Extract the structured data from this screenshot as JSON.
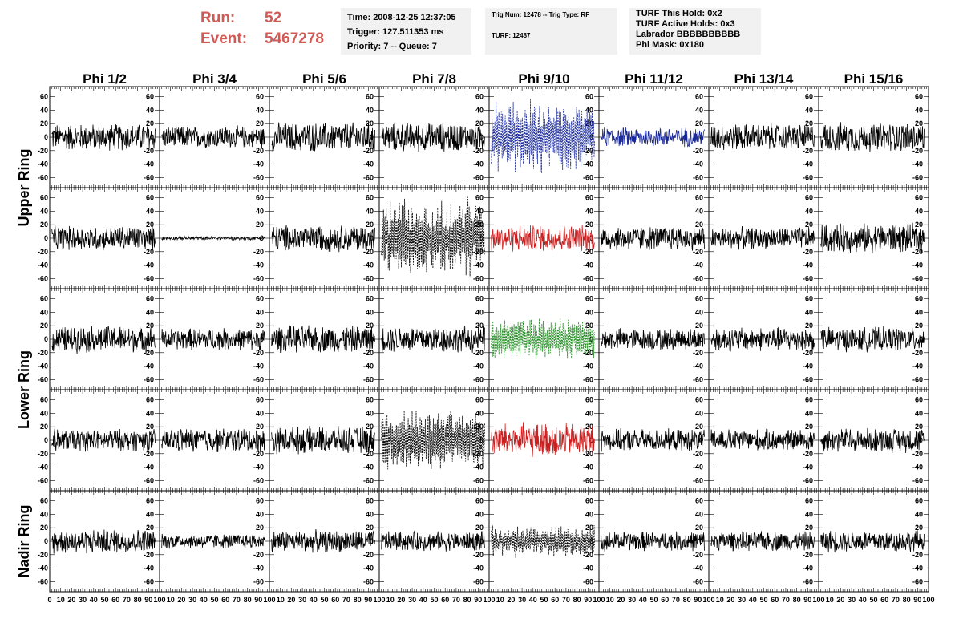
{
  "header": {
    "run_label": "Run:",
    "run_value": "52",
    "event_label": "Event:",
    "event_value": "5467278",
    "time": "Time: 2008-12-25 12:37:05",
    "trigger": "Trigger: 127.511353 ms",
    "priority": "Priority: 7 -- Queue: 7",
    "trig_num": "Trig Num: 12478 -- Trig Type: RF",
    "turf": "TURF: 12487",
    "turf_hold": "TURF This Hold: 0x2",
    "turf_active": "TURF Active Holds: 0x3",
    "labrador": "Labrador BBBBBBBBBB",
    "phi_mask": "Phi Mask: 0x180"
  },
  "colors": {
    "title_red": "#d05a56",
    "trace_black": "#000000",
    "trace_blue": "#1a2a9a",
    "trace_red": "#cc2020",
    "trace_green": "#1e8a1e",
    "info_bg": "#f1f1f1"
  },
  "chart_data": {
    "type": "line",
    "title": "",
    "columns": [
      "Phi 1/2",
      "Phi 3/4",
      "Phi 5/6",
      "Phi 7/8",
      "Phi 9/10",
      "Phi 11/12",
      "Phi 13/14",
      "Phi 15/16"
    ],
    "ring_labels": [
      {
        "text": "Upper Ring",
        "rows": [
          0,
          1
        ]
      },
      {
        "text": "Lower Ring",
        "rows": [
          2,
          3
        ]
      },
      {
        "text": "Nadir Ring",
        "rows": [
          4
        ]
      }
    ],
    "xlim": [
      0,
      100
    ],
    "ylim": [
      -75,
      75
    ],
    "x_ticks": [
      0,
      10,
      20,
      30,
      40,
      50,
      60,
      70,
      80,
      90,
      100
    ],
    "y_ticks": [
      -60,
      -40,
      -20,
      0,
      20,
      40,
      60
    ],
    "grid": false,
    "panels": [
      [
        {
          "amp": 22,
          "style": "solid",
          "color": "black"
        },
        {
          "amp": 18,
          "style": "solid",
          "color": "black"
        },
        {
          "amp": 24,
          "style": "solid",
          "color": "black"
        },
        {
          "amp": 24,
          "style": "solid",
          "color": "black"
        },
        {
          "amp": 45,
          "style": "dashed",
          "color": "blue"
        },
        {
          "amp": 16,
          "style": "solid",
          "color": "blue"
        },
        {
          "amp": 22,
          "style": "solid",
          "color": "black"
        },
        {
          "amp": 24,
          "style": "solid",
          "color": "black"
        }
      ],
      [
        {
          "amp": 20,
          "style": "solid",
          "color": "black"
        },
        {
          "amp": 3,
          "style": "solid",
          "color": "black"
        },
        {
          "amp": 22,
          "style": "solid",
          "color": "black"
        },
        {
          "amp": 50,
          "style": "dashed",
          "color": "black"
        },
        {
          "amp": 22,
          "style": "solid",
          "color": "red"
        },
        {
          "amp": 20,
          "style": "solid",
          "color": "black"
        },
        {
          "amp": 18,
          "style": "solid",
          "color": "black"
        },
        {
          "amp": 24,
          "style": "solid",
          "color": "black"
        }
      ],
      [
        {
          "amp": 22,
          "style": "solid",
          "color": "black"
        },
        {
          "amp": 18,
          "style": "solid",
          "color": "black"
        },
        {
          "amp": 22,
          "style": "solid",
          "color": "black"
        },
        {
          "amp": 22,
          "style": "solid",
          "color": "black"
        },
        {
          "amp": 28,
          "style": "dashed",
          "color": "green"
        },
        {
          "amp": 18,
          "style": "solid",
          "color": "black"
        },
        {
          "amp": 20,
          "style": "solid",
          "color": "black"
        },
        {
          "amp": 20,
          "style": "solid",
          "color": "black"
        }
      ],
      [
        {
          "amp": 18,
          "style": "solid",
          "color": "black"
        },
        {
          "amp": 20,
          "style": "solid",
          "color": "black"
        },
        {
          "amp": 22,
          "style": "solid",
          "color": "black"
        },
        {
          "amp": 40,
          "style": "dashed",
          "color": "black"
        },
        {
          "amp": 28,
          "style": "solid",
          "color": "red"
        },
        {
          "amp": 18,
          "style": "solid",
          "color": "black"
        },
        {
          "amp": 18,
          "style": "solid",
          "color": "black"
        },
        {
          "amp": 20,
          "style": "solid",
          "color": "black"
        }
      ],
      [
        {
          "amp": 20,
          "style": "solid",
          "color": "black"
        },
        {
          "amp": 12,
          "style": "solid",
          "color": "black"
        },
        {
          "amp": 18,
          "style": "solid",
          "color": "black"
        },
        {
          "amp": 16,
          "style": "solid",
          "color": "black"
        },
        {
          "amp": 20,
          "style": "dashed",
          "color": "black"
        },
        {
          "amp": 16,
          "style": "solid",
          "color": "black"
        },
        {
          "amp": 16,
          "style": "solid",
          "color": "black"
        },
        {
          "amp": 18,
          "style": "solid",
          "color": "black"
        }
      ]
    ]
  }
}
